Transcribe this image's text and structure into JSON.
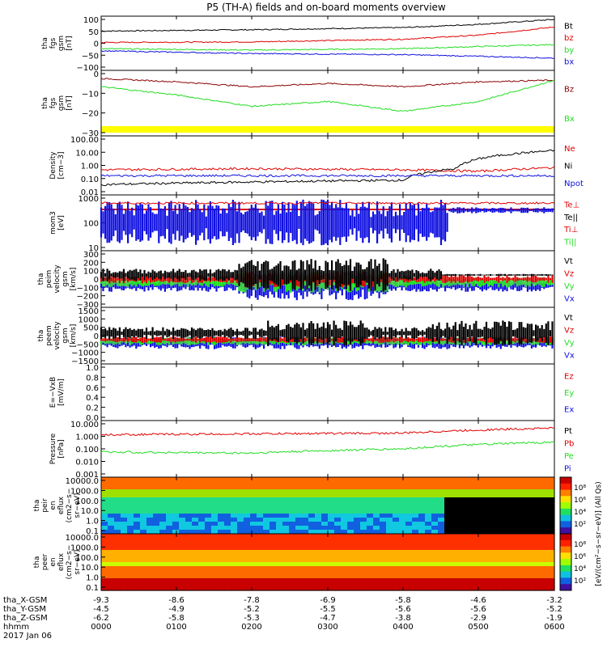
{
  "title": "P5 (TH-A) fields and on-board moments overview",
  "footer": {
    "rows": [
      {
        "label": "tha_X-GSM",
        "values": [
          "-9.3",
          "-8.6",
          "-7.8",
          "-6.9",
          "-5.8",
          "-4.6",
          "-3.2"
        ]
      },
      {
        "label": "tha_Y-GSM",
        "values": [
          "-4.5",
          "-4.9",
          "-5.2",
          "-5.5",
          "-5.6",
          "-5.6",
          "-5.2"
        ]
      },
      {
        "label": "tha_Z-GSM",
        "values": [
          "-6.2",
          "-5.8",
          "-5.3",
          "-4.7",
          "-3.8",
          "-2.9",
          "-1.9"
        ]
      },
      {
        "label": "hhmm",
        "values": [
          "0000",
          "0100",
          "0200",
          "0300",
          "0400",
          "0500",
          "0600"
        ]
      }
    ],
    "date": "2017 Jan 06"
  },
  "colors": {
    "black": "#000000",
    "red": "#e00000",
    "green": "#22dd22",
    "blue": "#1010e0",
    "darkred": "#8b0000",
    "yellow": "#ffff00"
  },
  "chart_data": [
    {
      "type": "line",
      "ylabel": [
        "tha",
        "fgs",
        "gsm",
        "[nT]"
      ],
      "yticks": [
        "100",
        "50",
        "0",
        "−50",
        "−100"
      ],
      "ylim": [
        -100,
        100
      ],
      "series": [
        {
          "name": "Bt",
          "color": "black",
          "approx": [
            [
              0,
              45
            ],
            [
              2,
              50
            ],
            [
              4,
              58
            ],
            [
              5,
              70
            ],
            [
              6,
              88
            ]
          ]
        },
        {
          "name": "bz",
          "color": "red",
          "approx": [
            [
              0,
              3
            ],
            [
              2,
              5
            ],
            [
              4,
              15
            ],
            [
              5,
              30
            ],
            [
              6,
              60
            ]
          ]
        },
        {
          "name": "by",
          "color": "green",
          "approx": [
            [
              0,
              -20
            ],
            [
              2,
              -25
            ],
            [
              4,
              -20
            ],
            [
              5,
              -12
            ],
            [
              6,
              -5
            ]
          ]
        },
        {
          "name": "bx",
          "color": "blue",
          "approx": [
            [
              0,
              -28
            ],
            [
              2,
              -38
            ],
            [
              4,
              -42
            ],
            [
              5,
              -48
            ],
            [
              6,
              -55
            ]
          ]
        }
      ]
    },
    {
      "type": "line",
      "ylabel": [
        "tha",
        "fgs",
        "gsm",
        "[nT]"
      ],
      "yticks": [
        "0",
        "−10",
        "−20",
        "−30"
      ],
      "ylim": [
        -35,
        5
      ],
      "series": [
        {
          "name": "Bz",
          "color": "darkred",
          "approx": [
            [
              0,
              0
            ],
            [
              1,
              -2
            ],
            [
              2,
              -5
            ],
            [
              3,
              -3
            ],
            [
              4,
              -5
            ],
            [
              5,
              -2
            ],
            [
              6,
              -1
            ]
          ]
        },
        {
          "name": "Bx",
          "color": "green",
          "approx": [
            [
              0,
              -5
            ],
            [
              1,
              -10
            ],
            [
              2,
              -17
            ],
            [
              3,
              -14
            ],
            [
              4,
              -20
            ],
            [
              5,
              -14
            ],
            [
              6,
              -1
            ]
          ]
        }
      ]
    },
    {
      "type": "line",
      "ylabel": [
        "Density",
        "[cm−3]"
      ],
      "yticks": [
        "100.00",
        "10.00",
        "1.00",
        "0.10",
        "0.01"
      ],
      "ylim": [
        0.01,
        100
      ],
      "ylog": true,
      "series": [
        {
          "name": "Ne",
          "color": "red",
          "approx": [
            [
              0,
              0.5
            ],
            [
              2,
              0.6
            ],
            [
              4,
              0.5
            ],
            [
              5,
              0.4
            ],
            [
              6,
              0.7
            ]
          ]
        },
        {
          "name": "Ni",
          "color": "black",
          "approx": [
            [
              0,
              0.05
            ],
            [
              4,
              0.1
            ],
            [
              4.7,
              0.6
            ],
            [
              6,
              10
            ]
          ]
        },
        {
          "name": "Npot",
          "color": "blue",
          "approx": [
            [
              0,
              0.2
            ],
            [
              6,
              0.2
            ]
          ]
        }
      ]
    },
    {
      "type": "line",
      "ylabel": [
        "mom3",
        "[eV]"
      ],
      "yticks": [
        "1000",
        "100",
        "10"
      ],
      "ylim": [
        10,
        5000
      ],
      "ylog": true,
      "series": [
        {
          "name": "Te⊥",
          "color": "red",
          "approx": [
            [
              0,
              2000
            ],
            [
              6,
              2000
            ]
          ]
        },
        {
          "name": "Te||",
          "color": "black"
        },
        {
          "name": "Ti⊥",
          "color": "red"
        },
        {
          "name": "Ti||",
          "color": "green"
        }
      ]
    },
    {
      "type": "line",
      "ylabel": [
        "tha",
        "peim",
        "velocity",
        "gsm",
        "[km/s]"
      ],
      "yticks": [
        "300",
        "200",
        "100",
        "0",
        "−100",
        "−200",
        "−300"
      ],
      "ylim": [
        -300,
        300
      ],
      "series": [
        {
          "name": "Vt",
          "color": "black"
        },
        {
          "name": "Vz",
          "color": "red"
        },
        {
          "name": "Vy",
          "color": "green"
        },
        {
          "name": "Vx",
          "color": "blue"
        }
      ]
    },
    {
      "type": "line",
      "ylabel": [
        "tha",
        "peem",
        "velocity",
        "gsm",
        "[km/s]"
      ],
      "yticks": [
        "1500",
        "1000",
        "500",
        "0",
        "−500",
        "−1000",
        "−1500"
      ],
      "ylim": [
        -1500,
        1500
      ],
      "series": [
        {
          "name": "Vt",
          "color": "black"
        },
        {
          "name": "Vz",
          "color": "red"
        },
        {
          "name": "Vy",
          "color": "green"
        },
        {
          "name": "Vx",
          "color": "blue"
        }
      ]
    },
    {
      "type": "line",
      "ylabel": [
        "E=−VxB",
        "[mV/m]"
      ],
      "yticks": [
        "1.0",
        "0.8",
        "0.6",
        "0.4",
        "0.2",
        "0.0"
      ],
      "ylim": [
        0,
        1
      ],
      "series": [
        {
          "name": "Ez",
          "color": "red"
        },
        {
          "name": "Ey",
          "color": "green"
        },
        {
          "name": "Ex",
          "color": "blue"
        }
      ]
    },
    {
      "type": "line",
      "ylabel": [
        "Pressure",
        "[nPa]"
      ],
      "yticks": [
        "10.000",
        "1.000",
        "0.100",
        "0.010",
        "0.001"
      ],
      "ylim": [
        0.001,
        10
      ],
      "ylog": true,
      "series": [
        {
          "name": "Pt",
          "color": "black"
        },
        {
          "name": "Pb",
          "color": "red",
          "approx": [
            [
              0,
              1
            ],
            [
              4,
              1.3
            ],
            [
              6,
              3
            ]
          ]
        },
        {
          "name": "Pe",
          "color": "green",
          "approx": [
            [
              0,
              0.06
            ],
            [
              2,
              0.05
            ],
            [
              4,
              0.1
            ],
            [
              6,
              0.3
            ]
          ]
        },
        {
          "name": "Pi",
          "color": "blue"
        }
      ]
    },
    {
      "type": "heatmap",
      "ylabel": [
        "tha",
        "peir",
        "en",
        "eflux",
        "(cm2−s−",
        "sr−eV)"
      ],
      "yticks": [
        "10000.0",
        "1000.0",
        "100.0",
        "10.0",
        "1.0",
        "0.1"
      ],
      "ylog": true
    },
    {
      "type": "heatmap",
      "ylabel": [
        "tha",
        "peer",
        "en",
        "eflux",
        "(cm2−s−",
        "sr−eV)"
      ],
      "yticks": [
        "10000.0",
        "1000.0",
        "100.0",
        "10.0",
        "1.0",
        "0.1"
      ],
      "ylog": true
    }
  ],
  "colorbar": {
    "ticks": [
      "10⁸",
      "10⁶",
      "10⁴",
      "10²"
    ],
    "label": "[eV/(cm²−s−sr−eV)] (All Qs)"
  }
}
